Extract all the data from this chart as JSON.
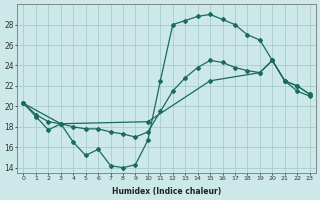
{
  "xlabel": "Humidex (Indice chaleur)",
  "bg_color": "#cce8e8",
  "grid_color": "#aacccc",
  "line_color": "#1a6b5a",
  "line1_x": [
    0,
    1,
    2,
    3,
    4,
    5,
    6,
    7,
    8,
    9,
    10,
    11,
    12,
    13,
    14,
    15,
    16,
    17,
    18,
    19,
    20,
    21,
    22,
    23
  ],
  "line1_y": [
    20.3,
    19.0,
    17.7,
    18.3,
    16.5,
    15.2,
    15.8,
    14.2,
    14.0,
    14.3,
    16.7,
    22.5,
    28.0,
    28.4,
    28.8,
    29.0,
    28.5,
    28.0,
    27.0,
    26.5,
    24.5,
    22.5,
    21.5,
    21.0
  ],
  "line2_x": [
    0,
    1,
    2,
    3,
    4,
    5,
    6,
    7,
    8,
    9,
    10,
    11,
    12,
    13,
    14,
    15,
    16,
    17,
    18,
    19,
    20,
    21,
    22,
    23
  ],
  "line2_y": [
    20.3,
    19.2,
    18.5,
    18.3,
    18.0,
    17.8,
    17.8,
    17.5,
    17.3,
    17.0,
    17.5,
    19.5,
    21.5,
    22.8,
    23.8,
    24.5,
    24.3,
    23.8,
    23.5,
    23.3,
    24.5,
    22.5,
    22.0,
    21.2
  ],
  "line3_x": [
    0,
    3,
    10,
    15,
    19,
    20,
    21,
    22,
    23
  ],
  "line3_y": [
    20.3,
    18.3,
    18.5,
    22.5,
    23.3,
    24.5,
    22.5,
    22.0,
    21.2
  ],
  "ylim": [
    13.5,
    30.0
  ],
  "xlim": [
    -0.5,
    23.5
  ],
  "yticks": [
    14,
    16,
    18,
    20,
    22,
    24,
    26,
    28
  ],
  "xticks": [
    0,
    1,
    2,
    3,
    4,
    5,
    6,
    7,
    8,
    9,
    10,
    11,
    12,
    13,
    14,
    15,
    16,
    17,
    18,
    19,
    20,
    21,
    22,
    23
  ]
}
